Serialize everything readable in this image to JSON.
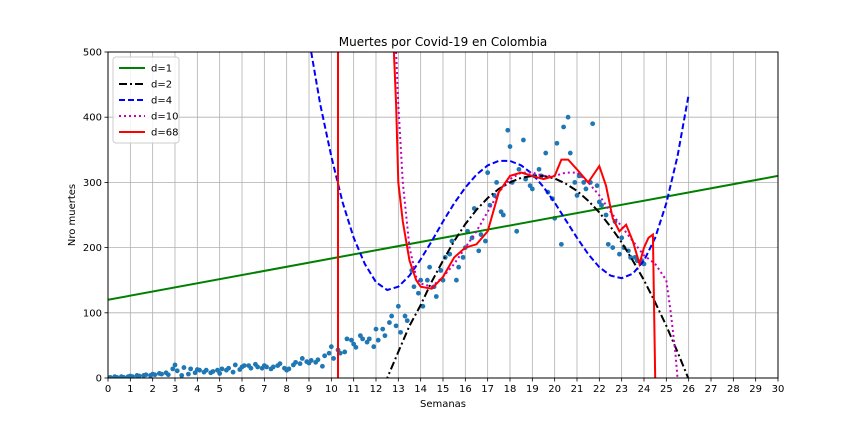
{
  "chart_data": {
    "type": "scatter",
    "title": "Muertes por Covid-19 en Colombia",
    "xlabel": "Semanas",
    "ylabel": "Nro muertes",
    "xlim": [
      0,
      30
    ],
    "ylim": [
      0,
      500
    ],
    "xticks": [
      0,
      1,
      2,
      3,
      4,
      5,
      6,
      7,
      8,
      9,
      10,
      11,
      12,
      13,
      14,
      15,
      16,
      17,
      18,
      19,
      20,
      21,
      22,
      23,
      24,
      25,
      26,
      27,
      28,
      29,
      30
    ],
    "yticks": [
      0,
      100,
      200,
      300,
      400,
      500
    ],
    "grid": true,
    "legend": "top-left",
    "scatter": {
      "color": "#1f77b4",
      "points": [
        [
          0.1,
          1
        ],
        [
          0.3,
          2
        ],
        [
          0.4,
          1
        ],
        [
          0.6,
          2
        ],
        [
          0.7,
          1
        ],
        [
          0.9,
          2
        ],
        [
          1.0,
          3
        ],
        [
          1.1,
          2
        ],
        [
          1.3,
          4
        ],
        [
          1.4,
          3
        ],
        [
          1.6,
          4
        ],
        [
          1.7,
          5
        ],
        [
          1.9,
          4
        ],
        [
          2.0,
          6
        ],
        [
          2.1,
          5
        ],
        [
          2.3,
          7
        ],
        [
          2.4,
          6
        ],
        [
          2.6,
          8
        ],
        [
          2.7,
          5
        ],
        [
          2.9,
          14
        ],
        [
          3.0,
          20
        ],
        [
          3.1,
          11
        ],
        [
          3.3,
          4
        ],
        [
          3.4,
          16
        ],
        [
          3.6,
          6
        ],
        [
          3.7,
          14
        ],
        [
          3.9,
          8
        ],
        [
          4.0,
          13
        ],
        [
          4.1,
          12
        ],
        [
          4.3,
          9
        ],
        [
          4.4,
          12
        ],
        [
          4.6,
          8
        ],
        [
          4.7,
          10
        ],
        [
          4.9,
          12
        ],
        [
          5.0,
          7
        ],
        [
          5.1,
          14
        ],
        [
          5.3,
          12
        ],
        [
          5.4,
          15
        ],
        [
          5.6,
          9
        ],
        [
          5.7,
          20
        ],
        [
          5.9,
          13
        ],
        [
          6.0,
          17
        ],
        [
          6.1,
          19
        ],
        [
          6.3,
          19
        ],
        [
          6.4,
          15
        ],
        [
          6.6,
          21
        ],
        [
          6.7,
          17
        ],
        [
          6.9,
          15
        ],
        [
          7.0,
          19
        ],
        [
          7.1,
          17
        ],
        [
          7.3,
          14
        ],
        [
          7.4,
          17
        ],
        [
          7.6,
          19
        ],
        [
          7.7,
          22
        ],
        [
          7.9,
          15
        ],
        [
          8.0,
          12
        ],
        [
          8.1,
          14
        ],
        [
          8.3,
          20
        ],
        [
          8.4,
          24
        ],
        [
          8.6,
          22
        ],
        [
          8.7,
          30
        ],
        [
          8.9,
          25
        ],
        [
          9.0,
          23
        ],
        [
          9.1,
          27
        ],
        [
          9.3,
          24
        ],
        [
          9.4,
          28
        ],
        [
          9.6,
          18
        ],
        [
          9.7,
          34
        ],
        [
          9.9,
          38
        ],
        [
          10.0,
          48
        ],
        [
          10.1,
          30
        ],
        [
          10.3,
          43
        ],
        [
          10.4,
          38
        ],
        [
          10.6,
          40
        ],
        [
          10.7,
          60
        ],
        [
          10.9,
          58
        ],
        [
          11.0,
          52
        ],
        [
          11.1,
          47
        ],
        [
          11.3,
          65
        ],
        [
          11.4,
          60
        ],
        [
          11.6,
          55
        ],
        [
          11.7,
          60
        ],
        [
          11.9,
          48
        ],
        [
          12.0,
          75
        ],
        [
          12.1,
          58
        ],
        [
          12.3,
          75
        ],
        [
          12.4,
          65
        ],
        [
          12.6,
          85
        ],
        [
          12.7,
          95
        ],
        [
          12.9,
          80
        ],
        [
          13.0,
          110
        ],
        [
          13.1,
          70
        ],
        [
          13.3,
          95
        ],
        [
          13.4,
          88
        ],
        [
          13.6,
          165
        ],
        [
          13.7,
          140
        ],
        [
          13.9,
          130
        ],
        [
          14.0,
          150
        ],
        [
          14.1,
          110
        ],
        [
          14.3,
          150
        ],
        [
          14.4,
          170
        ],
        [
          14.6,
          140
        ],
        [
          14.7,
          125
        ],
        [
          14.9,
          165
        ],
        [
          15.0,
          150
        ],
        [
          15.1,
          185
        ],
        [
          15.3,
          190
        ],
        [
          15.4,
          210
        ],
        [
          15.6,
          150
        ],
        [
          15.7,
          170
        ],
        [
          15.9,
          185
        ],
        [
          16.0,
          200
        ],
        [
          16.1,
          225
        ],
        [
          16.3,
          215
        ],
        [
          16.4,
          260
        ],
        [
          16.6,
          195
        ],
        [
          16.7,
          220
        ],
        [
          16.9,
          210
        ],
        [
          17.0,
          315
        ],
        [
          17.1,
          265
        ],
        [
          17.3,
          280
        ],
        [
          17.4,
          300
        ],
        [
          17.6,
          255
        ],
        [
          17.7,
          250
        ],
        [
          17.9,
          380
        ],
        [
          18.0,
          355
        ],
        [
          18.1,
          300
        ],
        [
          18.3,
          225
        ],
        [
          18.4,
          320
        ],
        [
          18.6,
          365
        ],
        [
          18.7,
          305
        ],
        [
          18.9,
          295
        ],
        [
          19.0,
          290
        ],
        [
          19.1,
          310
        ],
        [
          19.3,
          320
        ],
        [
          19.4,
          310
        ],
        [
          19.6,
          345
        ],
        [
          19.7,
          285
        ],
        [
          19.9,
          275
        ],
        [
          20.0,
          245
        ],
        [
          20.1,
          360
        ],
        [
          20.3,
          205
        ],
        [
          20.4,
          385
        ],
        [
          20.6,
          400
        ],
        [
          20.7,
          345
        ],
        [
          20.9,
          300
        ],
        [
          21.0,
          280
        ],
        [
          21.1,
          310
        ],
        [
          21.3,
          300
        ],
        [
          21.4,
          290
        ],
        [
          21.6,
          300
        ],
        [
          21.7,
          390
        ],
        [
          21.9,
          295
        ],
        [
          22.0,
          270
        ],
        [
          22.1,
          265
        ],
        [
          22.3,
          250
        ],
        [
          22.4,
          205
        ],
        [
          22.6,
          200
        ],
        [
          22.7,
          240
        ],
        [
          22.9,
          190
        ],
        [
          23.0,
          215
        ],
        [
          23.1,
          200
        ],
        [
          23.3,
          195
        ],
        [
          23.4,
          185
        ],
        [
          23.6,
          185
        ],
        [
          23.7,
          180
        ],
        [
          23.9,
          180
        ],
        [
          24.0,
          175
        ]
      ]
    },
    "series": [
      {
        "name": "d=1",
        "color": "#008000",
        "style": "solid",
        "width": 2,
        "points": [
          [
            0,
            120
          ],
          [
            30,
            310
          ]
        ]
      },
      {
        "name": "d=2",
        "color": "#000000",
        "style": "dashdot",
        "width": 2,
        "points": [
          [
            12.0,
            -30
          ],
          [
            12.5,
            0
          ],
          [
            13.0,
            40
          ],
          [
            13.5,
            80
          ],
          [
            14.0,
            112
          ],
          [
            14.5,
            148
          ],
          [
            15.0,
            180
          ],
          [
            15.5,
            210
          ],
          [
            16.0,
            236
          ],
          [
            16.5,
            258
          ],
          [
            17.0,
            276
          ],
          [
            17.5,
            290
          ],
          [
            18.0,
            300
          ],
          [
            18.5,
            307
          ],
          [
            19.0,
            310
          ],
          [
            19.5,
            310
          ],
          [
            20.0,
            306
          ],
          [
            20.5,
            298
          ],
          [
            21.0,
            287
          ],
          [
            21.5,
            272
          ],
          [
            22.0,
            254
          ],
          [
            22.5,
            232
          ],
          [
            23.0,
            208
          ],
          [
            23.5,
            180
          ],
          [
            24.0,
            150
          ],
          [
            24.5,
            116
          ],
          [
            25.0,
            80
          ],
          [
            25.5,
            40
          ],
          [
            26.0,
            -2
          ],
          [
            26.3,
            -30
          ]
        ]
      },
      {
        "name": "d=4",
        "color": "#0000ff",
        "style": "dashed",
        "width": 2,
        "points": [
          [
            9.1,
            500
          ],
          [
            9.5,
            420
          ],
          [
            10.0,
            340
          ],
          [
            10.5,
            270
          ],
          [
            11.0,
            215
          ],
          [
            11.5,
            175
          ],
          [
            12.0,
            147
          ],
          [
            12.5,
            135
          ],
          [
            13.0,
            140
          ],
          [
            13.5,
            157
          ],
          [
            14.0,
            182
          ],
          [
            14.5,
            210
          ],
          [
            15.0,
            240
          ],
          [
            15.5,
            268
          ],
          [
            16.0,
            292
          ],
          [
            16.5,
            312
          ],
          [
            17.0,
            326
          ],
          [
            17.5,
            333
          ],
          [
            18.0,
            333
          ],
          [
            18.5,
            326
          ],
          [
            19.0,
            313
          ],
          [
            19.5,
            293
          ],
          [
            20.0,
            269
          ],
          [
            20.5,
            242
          ],
          [
            21.0,
            215
          ],
          [
            21.5,
            190
          ],
          [
            22.0,
            170
          ],
          [
            22.5,
            157
          ],
          [
            23.0,
            153
          ],
          [
            23.5,
            160
          ],
          [
            24.0,
            180
          ],
          [
            24.5,
            215
          ],
          [
            25.0,
            268
          ],
          [
            25.5,
            340
          ],
          [
            26.0,
            435
          ]
        ]
      },
      {
        "name": "d=10",
        "color": "#bf00bf",
        "style": "dotted",
        "width": 2,
        "points": [
          [
            12.9,
            500
          ],
          [
            13.0,
            420
          ],
          [
            13.2,
            300
          ],
          [
            13.5,
            200
          ],
          [
            13.8,
            155
          ],
          [
            14.0,
            145
          ],
          [
            14.5,
            140
          ],
          [
            15.0,
            155
          ],
          [
            15.5,
            175
          ],
          [
            16.0,
            200
          ],
          [
            16.5,
            225
          ],
          [
            17.0,
            255
          ],
          [
            17.5,
            285
          ],
          [
            18.0,
            305
          ],
          [
            18.5,
            315
          ],
          [
            19.0,
            315
          ],
          [
            19.5,
            310
          ],
          [
            20.0,
            310
          ],
          [
            20.5,
            315
          ],
          [
            21.0,
            315
          ],
          [
            21.5,
            300
          ],
          [
            22.0,
            280
          ],
          [
            22.5,
            255
          ],
          [
            23.0,
            232
          ],
          [
            23.5,
            210
          ],
          [
            24.0,
            188
          ],
          [
            24.5,
            175
          ],
          [
            25.0,
            150
          ],
          [
            25.2,
            100
          ],
          [
            25.4,
            40
          ],
          [
            25.5,
            0
          ]
        ]
      },
      {
        "name": "d=68",
        "color": "#ff0000",
        "style": "solid",
        "width": 2,
        "points": [
          [
            10.3,
            0
          ],
          [
            10.3,
            500
          ]
        ],
        "extra": [
          [
            12.8,
            500
          ],
          [
            12.9,
            420
          ],
          [
            13.0,
            300
          ],
          [
            13.2,
            240
          ],
          [
            13.5,
            180
          ],
          [
            13.8,
            150
          ],
          [
            14.0,
            140
          ],
          [
            14.5,
            137
          ],
          [
            15.0,
            155
          ],
          [
            15.5,
            185
          ],
          [
            16.0,
            200
          ],
          [
            16.5,
            205
          ],
          [
            17.0,
            225
          ],
          [
            17.5,
            285
          ],
          [
            18.0,
            310
          ],
          [
            18.5,
            315
          ],
          [
            19.0,
            310
          ],
          [
            19.5,
            305
          ],
          [
            20.0,
            310
          ],
          [
            20.3,
            335
          ],
          [
            20.6,
            335
          ],
          [
            21.0,
            320
          ],
          [
            21.5,
            300
          ],
          [
            22.0,
            325
          ],
          [
            22.3,
            295
          ],
          [
            22.6,
            245
          ],
          [
            22.9,
            225
          ],
          [
            23.2,
            235
          ],
          [
            23.5,
            210
          ],
          [
            23.8,
            175
          ],
          [
            24.0,
            200
          ],
          [
            24.2,
            215
          ],
          [
            24.4,
            220
          ],
          [
            24.5,
            0
          ]
        ]
      }
    ]
  }
}
